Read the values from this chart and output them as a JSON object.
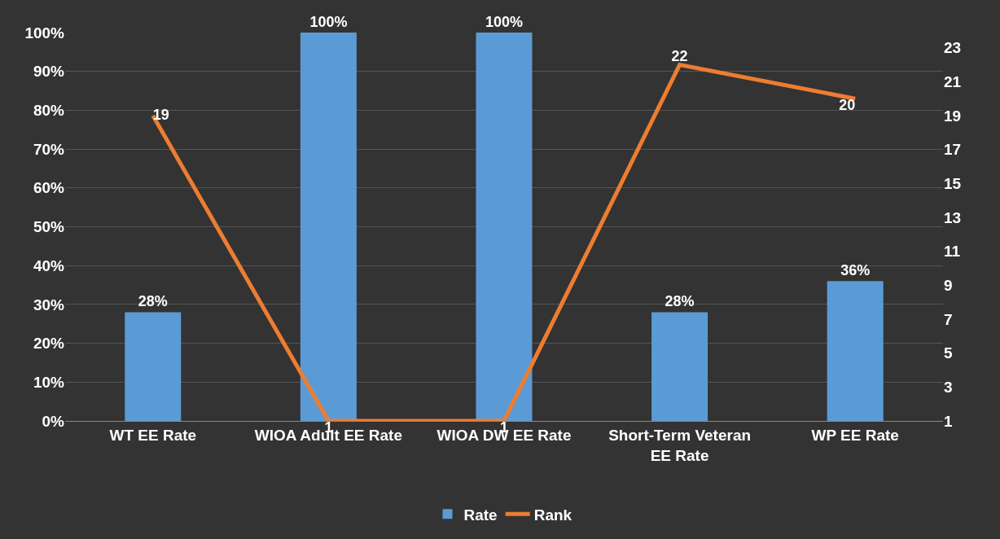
{
  "chart_data": {
    "type": "bar",
    "categories": [
      "WT EE Rate",
      "WIOA Adult EE Rate",
      "WIOA DW EE Rate",
      "Short-Term Veteran EE Rate",
      "WP EE Rate"
    ],
    "series": [
      {
        "name": "Rate",
        "color": "#5b9bd5",
        "values": [
          28,
          100,
          100,
          28,
          36
        ],
        "value_labels": [
          "28%",
          "100%",
          "100%",
          "28%",
          "36%"
        ]
      },
      {
        "name": "Rank",
        "type": "line",
        "axis": "y2",
        "color": "#ed7d31",
        "values": [
          19,
          1,
          1,
          22,
          20
        ],
        "value_labels": [
          "19",
          "1",
          "1",
          "22",
          "20"
        ]
      }
    ],
    "ylim": [
      0,
      100
    ],
    "yticks": [
      {
        "value": 0,
        "label": "0%"
      },
      {
        "value": 10,
        "label": "10%"
      },
      {
        "value": 20,
        "label": "20%"
      },
      {
        "value": 30,
        "label": "30%"
      },
      {
        "value": 40,
        "label": "40%"
      },
      {
        "value": 50,
        "label": "50%"
      },
      {
        "value": 60,
        "label": "60%"
      },
      {
        "value": 70,
        "label": "70%"
      },
      {
        "value": 80,
        "label": "80%"
      },
      {
        "value": 90,
        "label": "90%"
      },
      {
        "value": 100,
        "label": "100%"
      }
    ],
    "y2lim": [
      1,
      23.9
    ],
    "y2ticks": [
      1,
      3,
      5,
      7,
      9,
      11,
      13,
      15,
      17,
      19,
      21,
      23
    ],
    "grid": "y",
    "legend": "bottom",
    "marker": "none",
    "line_style": "solid"
  }
}
